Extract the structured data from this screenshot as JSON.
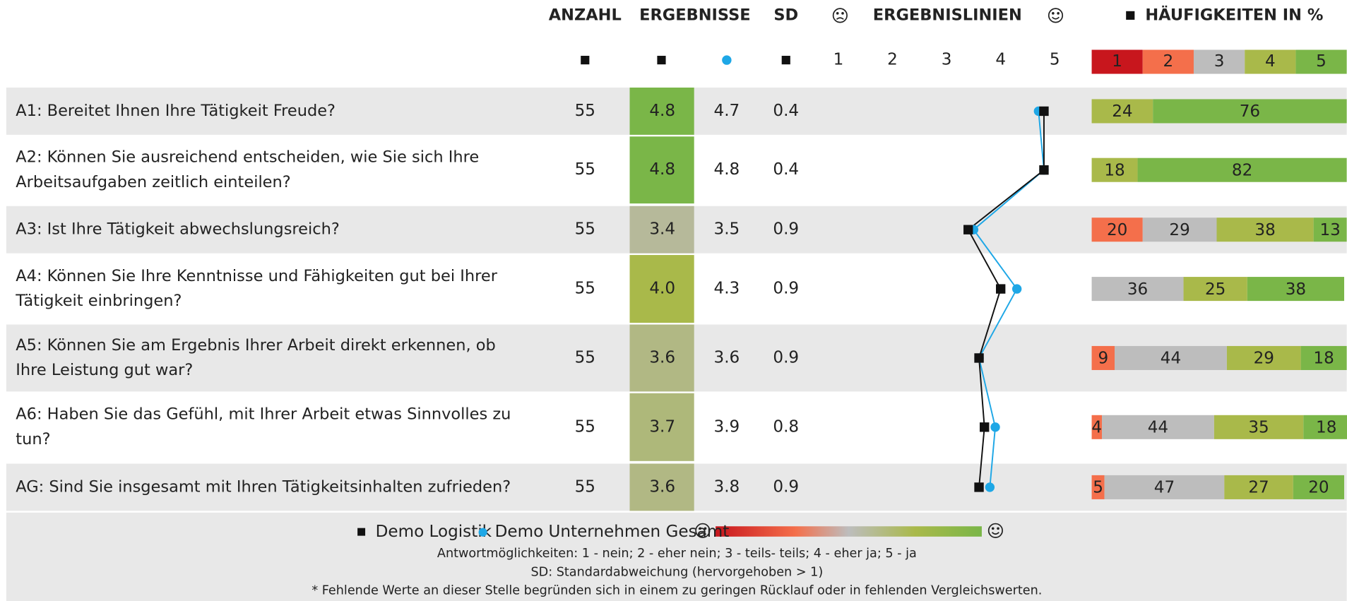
{
  "header": {
    "count": "ANZAHL",
    "results": "ERGEBNISSE",
    "sd": "SD",
    "lines": "ERGEBNISLINIEN",
    "frequencies": "HÄUFIGKEITEN IN %"
  },
  "scale": {
    "levels": [
      1,
      2,
      3,
      4,
      5
    ],
    "colors": [
      "#c8161d",
      "#f46f4b",
      "#bdbdbd",
      "#a9b94a",
      "#7ab648"
    ]
  },
  "series": [
    {
      "name": "Demo Logistik",
      "color": "#111111"
    },
    {
      "name": "Demo Unternehmen Gesamt",
      "color": "#1ea7e6"
    }
  ],
  "rows": [
    {
      "question": [
        "A1: Bereitet Ihnen Ihre Tätigkeit Freude?"
      ],
      "count": 55,
      "result": 4.8,
      "result_color": "#7ab648",
      "comparison": 4.7,
      "sd": 0.4,
      "frequencies": [
        null,
        null,
        null,
        24,
        76
      ]
    },
    {
      "question": [
        "A2: Können Sie ausreichend entscheiden, wie Sie sich Ihre",
        "Arbeitsaufgaben zeitlich einteilen?"
      ],
      "count": 55,
      "result": 4.8,
      "result_color": "#7ab648",
      "comparison": 4.8,
      "sd": 0.4,
      "frequencies": [
        null,
        null,
        null,
        18,
        82
      ]
    },
    {
      "question": [
        "A3: Ist Ihre Tätigkeit abwechslungsreich?"
      ],
      "count": 55,
      "result": 3.4,
      "result_color": "#b6b99a",
      "comparison": 3.5,
      "sd": 0.9,
      "frequencies": [
        null,
        20,
        29,
        38,
        13
      ]
    },
    {
      "question": [
        "A4: Können Sie Ihre Kenntnisse und Fähigkeiten gut bei Ihrer",
        "Tätigkeit einbringen?"
      ],
      "count": 55,
      "result": 4,
      "result_label": "4.0",
      "result_color": "#a9b94a",
      "comparison": 4.3,
      "sd": 0.9,
      "frequencies": [
        null,
        null,
        36,
        25,
        38
      ]
    },
    {
      "question": [
        "A5: Können Sie am Ergebnis Ihrer Arbeit direkt erkennen, ob",
        "Ihre Leistung gut war?"
      ],
      "count": 55,
      "result": 3.6,
      "result_color": "#b1b884",
      "comparison": 3.6,
      "sd": 0.9,
      "frequencies": [
        null,
        9,
        44,
        29,
        18
      ]
    },
    {
      "question": [
        "A6: Haben Sie das Gefühl, mit Ihrer Arbeit etwas Sinnvolles zu",
        "tun?"
      ],
      "count": 55,
      "result": 3.7,
      "result_color": "#aeb87a",
      "comparison": 3.9,
      "sd": 0.8,
      "frequencies": [
        null,
        4,
        44,
        35,
        18
      ]
    },
    {
      "question": [
        "AG: Sind Sie insgesamt mit Ihren Tätigkeitsinhalten zufrieden?"
      ],
      "count": 55,
      "result": 3.6,
      "result_color": "#b1b884",
      "comparison": 3.8,
      "sd": 0.9,
      "frequencies": [
        null,
        5,
        47,
        27,
        20
      ]
    }
  ],
  "notes": [
    "Antwortmöglichkeiten: 1 - nein; 2 - eher nein; 3 - teils- teils; 4 - eher ja; 5 - ja",
    "SD: Standardabweichung (hervorgehoben > 1)",
    "* Fehlende Werte an dieser Stelle begründen sich in einem zu geringen Rücklauf oder in fehlenden Vergleichswerten."
  ]
}
